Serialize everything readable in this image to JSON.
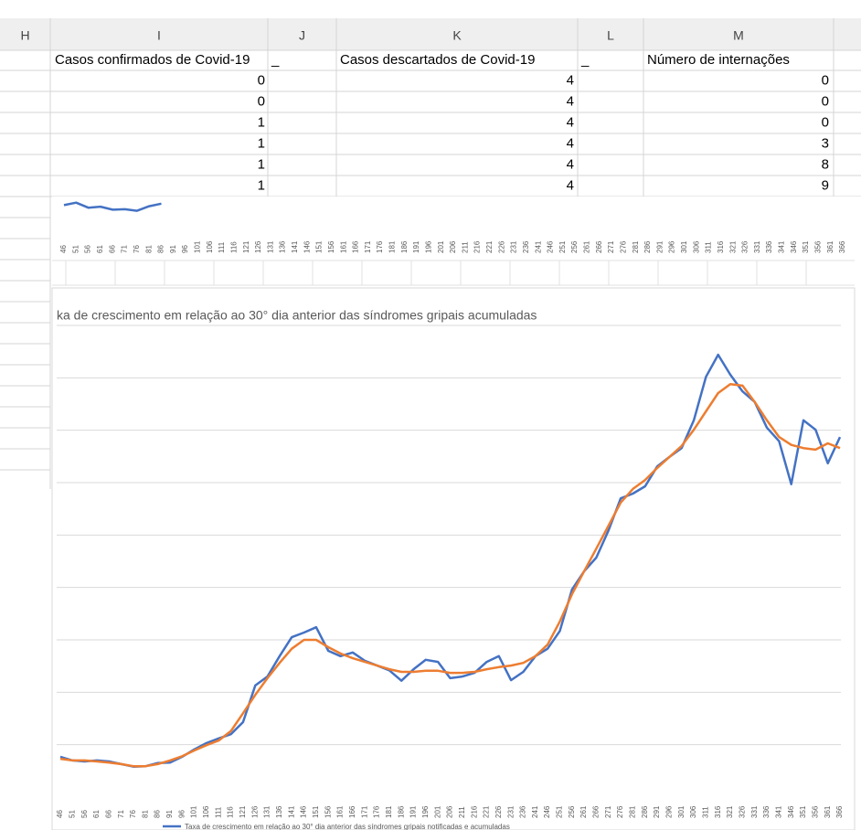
{
  "sheet": {
    "columns": [
      "H",
      "I",
      "J",
      "K",
      "L",
      "M"
    ],
    "header_row": [
      "Casos confirmados de Covid-19",
      "_",
      "Casos descartados de Covid-19",
      "_",
      "Número de internações"
    ],
    "rows": [
      [
        0,
        4,
        0
      ],
      [
        0,
        4,
        0
      ],
      [
        1,
        4,
        0
      ],
      [
        1,
        4,
        3
      ],
      [
        1,
        4,
        8
      ],
      [
        1,
        4,
        9
      ]
    ]
  },
  "chart_data": [
    {
      "type": "line",
      "x": [
        46,
        51,
        56,
        61,
        66,
        71,
        76,
        81,
        86
      ],
      "series": [
        {
          "color": "#4472c4",
          "values": [
            0.55,
            0.6,
            0.5,
            0.52,
            0.46,
            0.47,
            0.44,
            0.53,
            0.58
          ]
        }
      ],
      "xlim": [
        46,
        366
      ],
      "ylim": [
        0,
        0.9
      ],
      "xticks": [
        46,
        51,
        56,
        61,
        66,
        71,
        76,
        81,
        86,
        91,
        96,
        101,
        106,
        111,
        116,
        121,
        126,
        131,
        136,
        141,
        146,
        151,
        156,
        161,
        166,
        171,
        176,
        181,
        186,
        191,
        196,
        201,
        206,
        211,
        216,
        221,
        226,
        231,
        236,
        241,
        246,
        251,
        256,
        261,
        266,
        271,
        276,
        281,
        286,
        291,
        296,
        301,
        306,
        311,
        316,
        321,
        326,
        331,
        336,
        341,
        346,
        351,
        356,
        361,
        366
      ]
    },
    {
      "type": "line",
      "title": "ka de crescimento em relação ao 30° dia anterior das síndromes gripais acumuladas",
      "x": [
        46,
        51,
        56,
        61,
        66,
        71,
        76,
        81,
        86,
        91,
        96,
        101,
        106,
        111,
        116,
        121,
        126,
        131,
        136,
        141,
        146,
        151,
        156,
        161,
        166,
        171,
        176,
        181,
        186,
        191,
        196,
        201,
        206,
        211,
        216,
        221,
        226,
        231,
        236,
        241,
        246,
        251,
        256,
        261,
        266,
        271,
        276,
        281,
        286,
        291,
        296,
        301,
        306,
        311,
        316,
        321,
        326,
        331,
        336,
        341,
        346,
        351,
        356,
        361,
        366
      ],
      "series": [
        {
          "name": "Taxa de crescimento em relação ao 30° dia anterior das síndromes gripais notificadas e acumuladas",
          "color": "#4472c4",
          "values": [
            0.77,
            0.7,
            0.68,
            0.7,
            0.68,
            0.63,
            0.58,
            0.59,
            0.65,
            0.66,
            0.77,
            0.91,
            1.03,
            1.12,
            1.2,
            1.43,
            2.13,
            2.3,
            2.69,
            3.05,
            3.14,
            3.24,
            2.79,
            2.69,
            2.76,
            2.6,
            2.51,
            2.42,
            2.22,
            2.44,
            2.62,
            2.58,
            2.27,
            2.3,
            2.37,
            2.58,
            2.69,
            2.23,
            2.39,
            2.69,
            2.83,
            3.17,
            3.96,
            4.31,
            4.57,
            5.09,
            5.7,
            5.79,
            5.93,
            6.31,
            6.49,
            6.66,
            7.19,
            8.02,
            8.44,
            8.06,
            7.74,
            7.54,
            7.05,
            6.79,
            5.97,
            7.19,
            7.01,
            6.37,
            6.87
          ]
        },
        {
          "color": "#ed7d31",
          "values": [
            0.73,
            0.7,
            0.7,
            0.68,
            0.66,
            0.63,
            0.59,
            0.59,
            0.63,
            0.7,
            0.78,
            0.89,
            0.99,
            1.08,
            1.26,
            1.6,
            1.95,
            2.27,
            2.56,
            2.83,
            3.0,
            3.0,
            2.86,
            2.74,
            2.65,
            2.58,
            2.51,
            2.44,
            2.39,
            2.39,
            2.41,
            2.41,
            2.37,
            2.37,
            2.39,
            2.44,
            2.48,
            2.51,
            2.56,
            2.69,
            2.91,
            3.35,
            3.87,
            4.31,
            4.74,
            5.18,
            5.62,
            5.88,
            6.05,
            6.28,
            6.49,
            6.7,
            7.01,
            7.36,
            7.71,
            7.88,
            7.85,
            7.54,
            7.19,
            6.87,
            6.72,
            6.66,
            6.63,
            6.75,
            6.66
          ]
        }
      ],
      "xlim": [
        46,
        366
      ],
      "ylim": [
        0,
        9
      ],
      "xticks": [
        46,
        51,
        56,
        61,
        66,
        71,
        76,
        81,
        86,
        91,
        96,
        101,
        106,
        111,
        116,
        121,
        126,
        131,
        136,
        141,
        146,
        151,
        156,
        161,
        166,
        171,
        176,
        181,
        186,
        191,
        196,
        201,
        206,
        211,
        216,
        221,
        226,
        231,
        236,
        241,
        246,
        251,
        256,
        261,
        266,
        271,
        276,
        281,
        286,
        291,
        296,
        301,
        306,
        311,
        316,
        321,
        326,
        331,
        336,
        341,
        346,
        351,
        356,
        361,
        366
      ],
      "yticks": [
        1,
        2,
        3,
        4,
        5,
        6,
        7,
        8,
        9
      ],
      "grid": true
    }
  ]
}
